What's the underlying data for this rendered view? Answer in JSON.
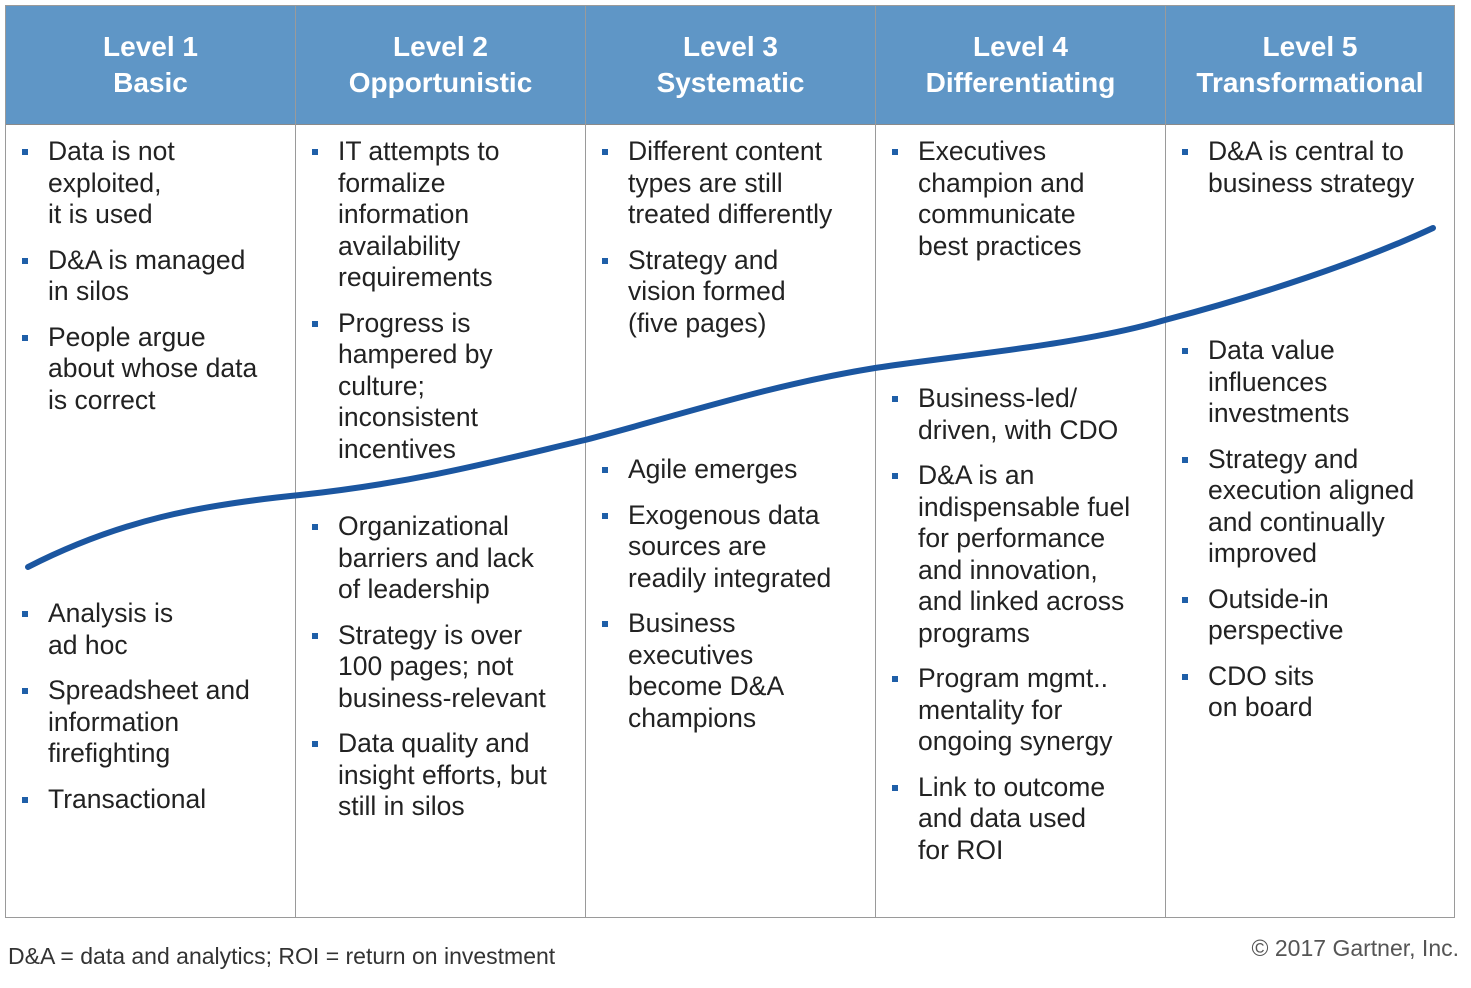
{
  "columns": [
    {
      "level": "Level 1",
      "name": "Basic",
      "above": [
        "Data is not\nexploited,\nit is used",
        "D&A is managed\nin silos",
        "People argue\nabout whose data\nis correct"
      ],
      "below": [
        "Analysis is\nad hoc",
        "Spreadsheet and\ninformation\nfirefighting",
        "Transactional"
      ]
    },
    {
      "level": "Level 2",
      "name": "Opportunistic",
      "above": [
        "IT attempts to\nformalize\ninformation\navailability\nrequirements",
        "Progress is\nhampered by\nculture;\ninconsistent\nincentives"
      ],
      "below": [
        "Organizational\nbarriers and lack\nof leadership",
        "Strategy is over\n100 pages; not\nbusiness-relevant",
        "Data quality and\ninsight efforts, but\nstill in silos"
      ]
    },
    {
      "level": "Level 3",
      "name": "Systematic",
      "above": [
        "Different content\ntypes are still\ntreated differently",
        "Strategy and\nvision formed\n(five pages)"
      ],
      "below": [
        "Agile emerges",
        "Exogenous data\nsources are\nreadily integrated",
        "Business\nexecutives\nbecome D&A\nchampions"
      ]
    },
    {
      "level": "Level 4",
      "name": "Differentiating",
      "above": [
        "Executives\nchampion and\ncommunicate\nbest practices"
      ],
      "below": [
        "Business-led/\ndriven, with CDO",
        "D&A is an\nindispensable fuel\nfor performance\nand innovation,\nand linked across\nprograms",
        "Program mgmt..\nmentality for\nongoing synergy",
        "Link to outcome\nand data used\nfor ROI"
      ]
    },
    {
      "level": "Level 5",
      "name": "Transformational",
      "above": [
        "D&A is central to\nbusiness strategy"
      ],
      "below": [
        "Data value\ninfluences\ninvestments",
        "Strategy and\nexecution aligned\nand continually\nimproved",
        "Outside-in\nperspective",
        "CDO sits\non board"
      ]
    }
  ],
  "footnote": "D&A = data and analytics; ROI = return on investment",
  "copyright": "© 2017 Gartner, Inc.",
  "colors": {
    "header": "#5f96c6",
    "curve": "#1b56a0",
    "bullet": "#1f5fa8"
  }
}
